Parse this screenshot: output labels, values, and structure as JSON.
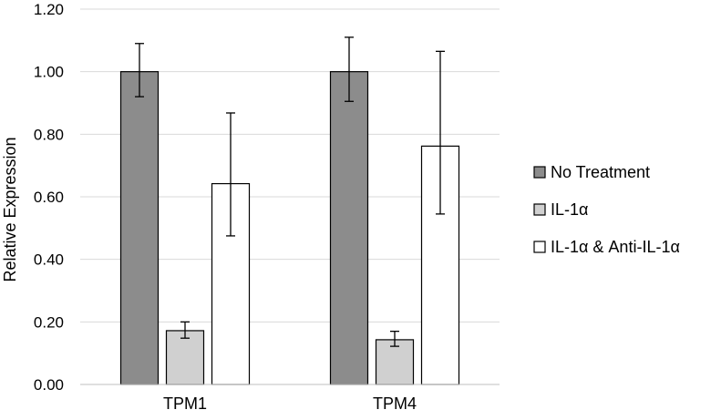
{
  "chart_data": {
    "type": "bar",
    "title": "",
    "xlabel": "",
    "ylabel": "Relative Expression",
    "ylim": [
      0,
      1.2
    ],
    "yticks": [
      "0.00",
      "0.20",
      "0.40",
      "0.60",
      "0.80",
      "1.00",
      "1.20"
    ],
    "grid": true,
    "legend_position": "right",
    "categories": [
      "TPM1",
      "TPM4"
    ],
    "series": [
      {
        "name": "No Treatment",
        "color": "#8c8c8c",
        "values": [
          1.0,
          1.0
        ],
        "error": [
          [
            0.92,
            1.09
          ],
          [
            0.905,
            1.11
          ]
        ]
      },
      {
        "name": "IL-1α",
        "color": "#d0d0d0",
        "values": [
          0.172,
          0.143
        ],
        "error": [
          [
            0.148,
            0.2
          ],
          [
            0.122,
            0.17
          ]
        ]
      },
      {
        "name": "IL-1α & Anti-IL-1α",
        "color": "#ffffff",
        "values": [
          0.642,
          0.762
        ],
        "error": [
          [
            0.475,
            0.868
          ],
          [
            0.545,
            1.065
          ]
        ]
      }
    ]
  }
}
